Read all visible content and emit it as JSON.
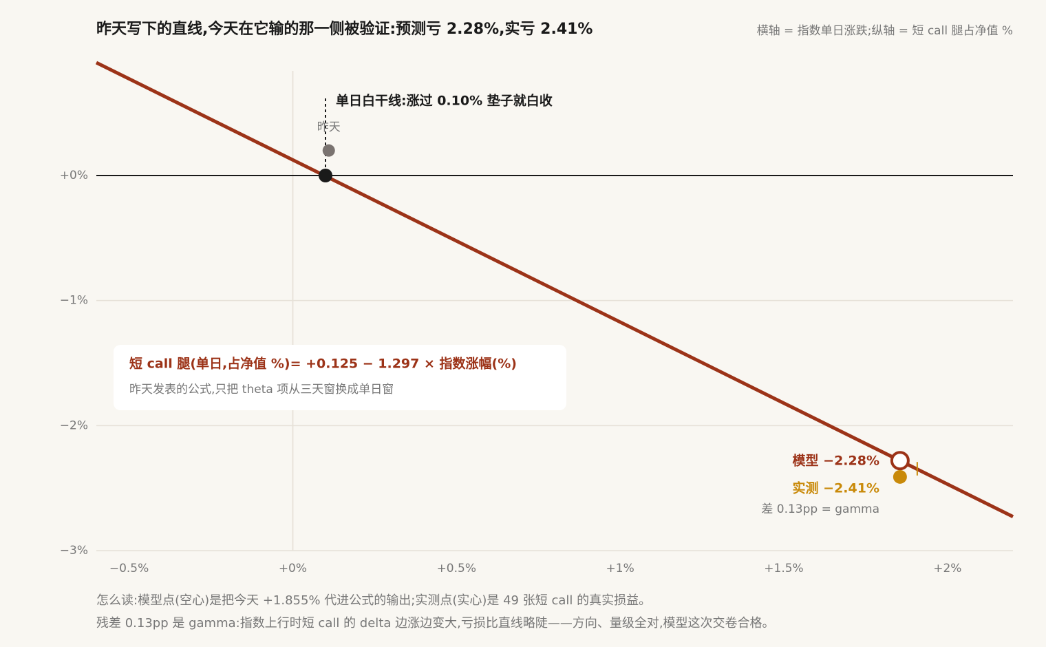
{
  "chart_data": {
    "type": "line",
    "title": "昨天写下的直线,今天在它输的那一侧被验证:预测亏 2.28%,实亏 2.41%",
    "subtitle": "横轴 = 指数单日涨跌;纵轴 = 短 call 腿占净值 %",
    "xlim": [
      -0.6,
      2.2
    ],
    "ylim": [
      -3,
      0.9
    ],
    "xticks": [
      {
        "value": -0.5,
        "label": "−0.5%"
      },
      {
        "value": 0,
        "label": "+0%"
      },
      {
        "value": 0.5,
        "label": "+0.5%"
      },
      {
        "value": 1,
        "label": "+1%"
      },
      {
        "value": 1.5,
        "label": "+1.5%"
      },
      {
        "value": 2,
        "label": "+2%"
      }
    ],
    "yticks": [
      {
        "value": 0,
        "label": "+0%"
      },
      {
        "value": -1,
        "label": "−1%"
      },
      {
        "value": -2,
        "label": "−2%"
      },
      {
        "value": -3,
        "label": "−3%"
      }
    ],
    "grid": true,
    "line": {
      "color": "#9c3318",
      "x": [
        -0.6,
        2.2
      ],
      "values": [
        0.903,
        -2.728
      ]
    },
    "points": [
      {
        "label": "昨天",
        "x": 0.11,
        "value": 0.2,
        "color": "#7a7370"
      },
      {
        "x": 0.1,
        "value": 0,
        "color": "#1a1a1a"
      },
      {
        "label": "模型 −2.28%",
        "x": 1.855,
        "value": -2.28,
        "color": "#9c3318",
        "hollow": true
      },
      {
        "label": "实测 −2.41%",
        "x": 1.855,
        "value": -2.41,
        "color": "#c98a0a"
      }
    ],
    "annotation": "单日白干线:涨过 0.10% 垫子就白收",
    "residual_note": "差 0.13pp = gamma",
    "formula": {
      "title": "短 call 腿(单日,占净值 %)= +0.125 − 1.297 × 指数涨幅(%)",
      "subtitle": "昨天发表的公式,只把 theta 项从三天窗换成单日窗"
    },
    "notes": [
      "怎么读:模型点(空心)是把今天 +1.855% 代进公式的输出;实测点(实心)是 49 张短 call 的真实损益。",
      "残差 0.13pp 是 gamma:指数上行时短 call 的 delta 边涨边变大,亏损比直线略陡——方向、量级全对,模型这次交卷合格。"
    ]
  }
}
